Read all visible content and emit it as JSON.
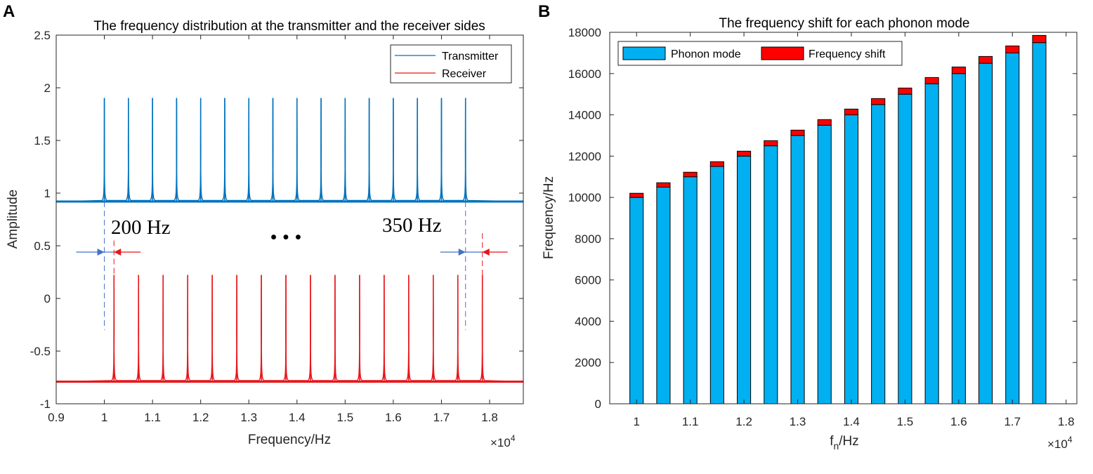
{
  "colors": {
    "transmitter": "#0072BD",
    "receiver": "#E8161A",
    "phonon_mode": "#00B0F0",
    "frequency_shift": "#FF0000",
    "arrow_blue": "#4472C4",
    "arrow_red": "#E8161A"
  },
  "chart_data": [
    {
      "panel": "A",
      "type": "line",
      "title": "The frequency distribution at the transmitter and the receiver sides",
      "xlabel": "Frequency/Hz",
      "ylabel": "Amplitude",
      "x_exponent_label": "×10",
      "x_exponent_power": "4",
      "xlim": [
        9000,
        18700
      ],
      "ylim": [
        -1,
        2.5
      ],
      "xticks": [
        9000,
        10000,
        11000,
        12000,
        13000,
        14000,
        15000,
        16000,
        17000,
        18000
      ],
      "xtick_labels": [
        "0.9",
        "1",
        "1.1",
        "1.2",
        "1.3",
        "1.4",
        "1.5",
        "1.6",
        "1.7",
        "1.8"
      ],
      "yticks": [
        -1,
        -0.5,
        0,
        0.5,
        1,
        1.5,
        2,
        2.5
      ],
      "ytick_labels": [
        "-1",
        "-0.5",
        "0",
        "0.5",
        "1",
        "1.5",
        "2",
        "2.5"
      ],
      "legend": [
        "Transmitter",
        "Receiver"
      ],
      "legend_position": "top-right",
      "series": [
        {
          "name": "Transmitter",
          "baseline": 0.92,
          "peak_height": 1.9,
          "peaks_x": [
            10000,
            10500,
            11000,
            11500,
            12000,
            12500,
            13000,
            13500,
            14000,
            14500,
            15000,
            15500,
            16000,
            16500,
            17000,
            17500
          ]
        },
        {
          "name": "Receiver",
          "baseline": -0.79,
          "peak_height": 0.22,
          "peaks_x": [
            10200,
            10710,
            11220,
            11730,
            12240,
            12750,
            13260,
            13770,
            14280,
            14790,
            15300,
            15810,
            16320,
            16830,
            17340,
            17850
          ]
        }
      ],
      "annotations": {
        "left_shift": "200 Hz",
        "right_shift": "350 Hz",
        "ellipsis": "• • •"
      }
    },
    {
      "panel": "B",
      "type": "bar",
      "stacked": true,
      "title": "The frequency shift for each phonon mode",
      "xlabel_main": "f",
      "xlabel_sub": "n",
      "xlabel_rest": "/Hz",
      "ylabel": "Frequency/Hz",
      "x_exponent_label": "×10",
      "x_exponent_power": "4",
      "xlim": [
        9500,
        18200
      ],
      "ylim": [
        0,
        18000
      ],
      "xticks": [
        10000,
        11000,
        12000,
        13000,
        14000,
        15000,
        16000,
        17000,
        18000
      ],
      "xtick_labels": [
        "1",
        "1.1",
        "1.2",
        "1.3",
        "1.4",
        "1.5",
        "1.6",
        "1.7",
        "1.8"
      ],
      "yticks": [
        0,
        2000,
        4000,
        6000,
        8000,
        10000,
        12000,
        14000,
        16000,
        18000
      ],
      "ytick_labels": [
        "0",
        "2000",
        "4000",
        "6000",
        "8000",
        "10000",
        "12000",
        "14000",
        "16000",
        "18000"
      ],
      "legend": [
        "Phonon mode",
        "Frequency shift"
      ],
      "legend_position": "top-left",
      "x": [
        10000,
        10500,
        11000,
        11500,
        12000,
        12500,
        13000,
        13500,
        14000,
        14500,
        15000,
        15500,
        16000,
        16500,
        17000,
        17500
      ],
      "series": [
        {
          "name": "Phonon mode",
          "values": [
            10000,
            10500,
            11000,
            11500,
            12000,
            12500,
            13000,
            13500,
            14000,
            14500,
            15000,
            15500,
            16000,
            16500,
            17000,
            17500
          ]
        },
        {
          "name": "Frequency shift",
          "values": [
            200,
            210,
            220,
            230,
            240,
            250,
            260,
            270,
            280,
            290,
            300,
            310,
            320,
            330,
            340,
            350
          ]
        }
      ]
    }
  ],
  "panels": {
    "a_letter": "A",
    "b_letter": "B"
  }
}
